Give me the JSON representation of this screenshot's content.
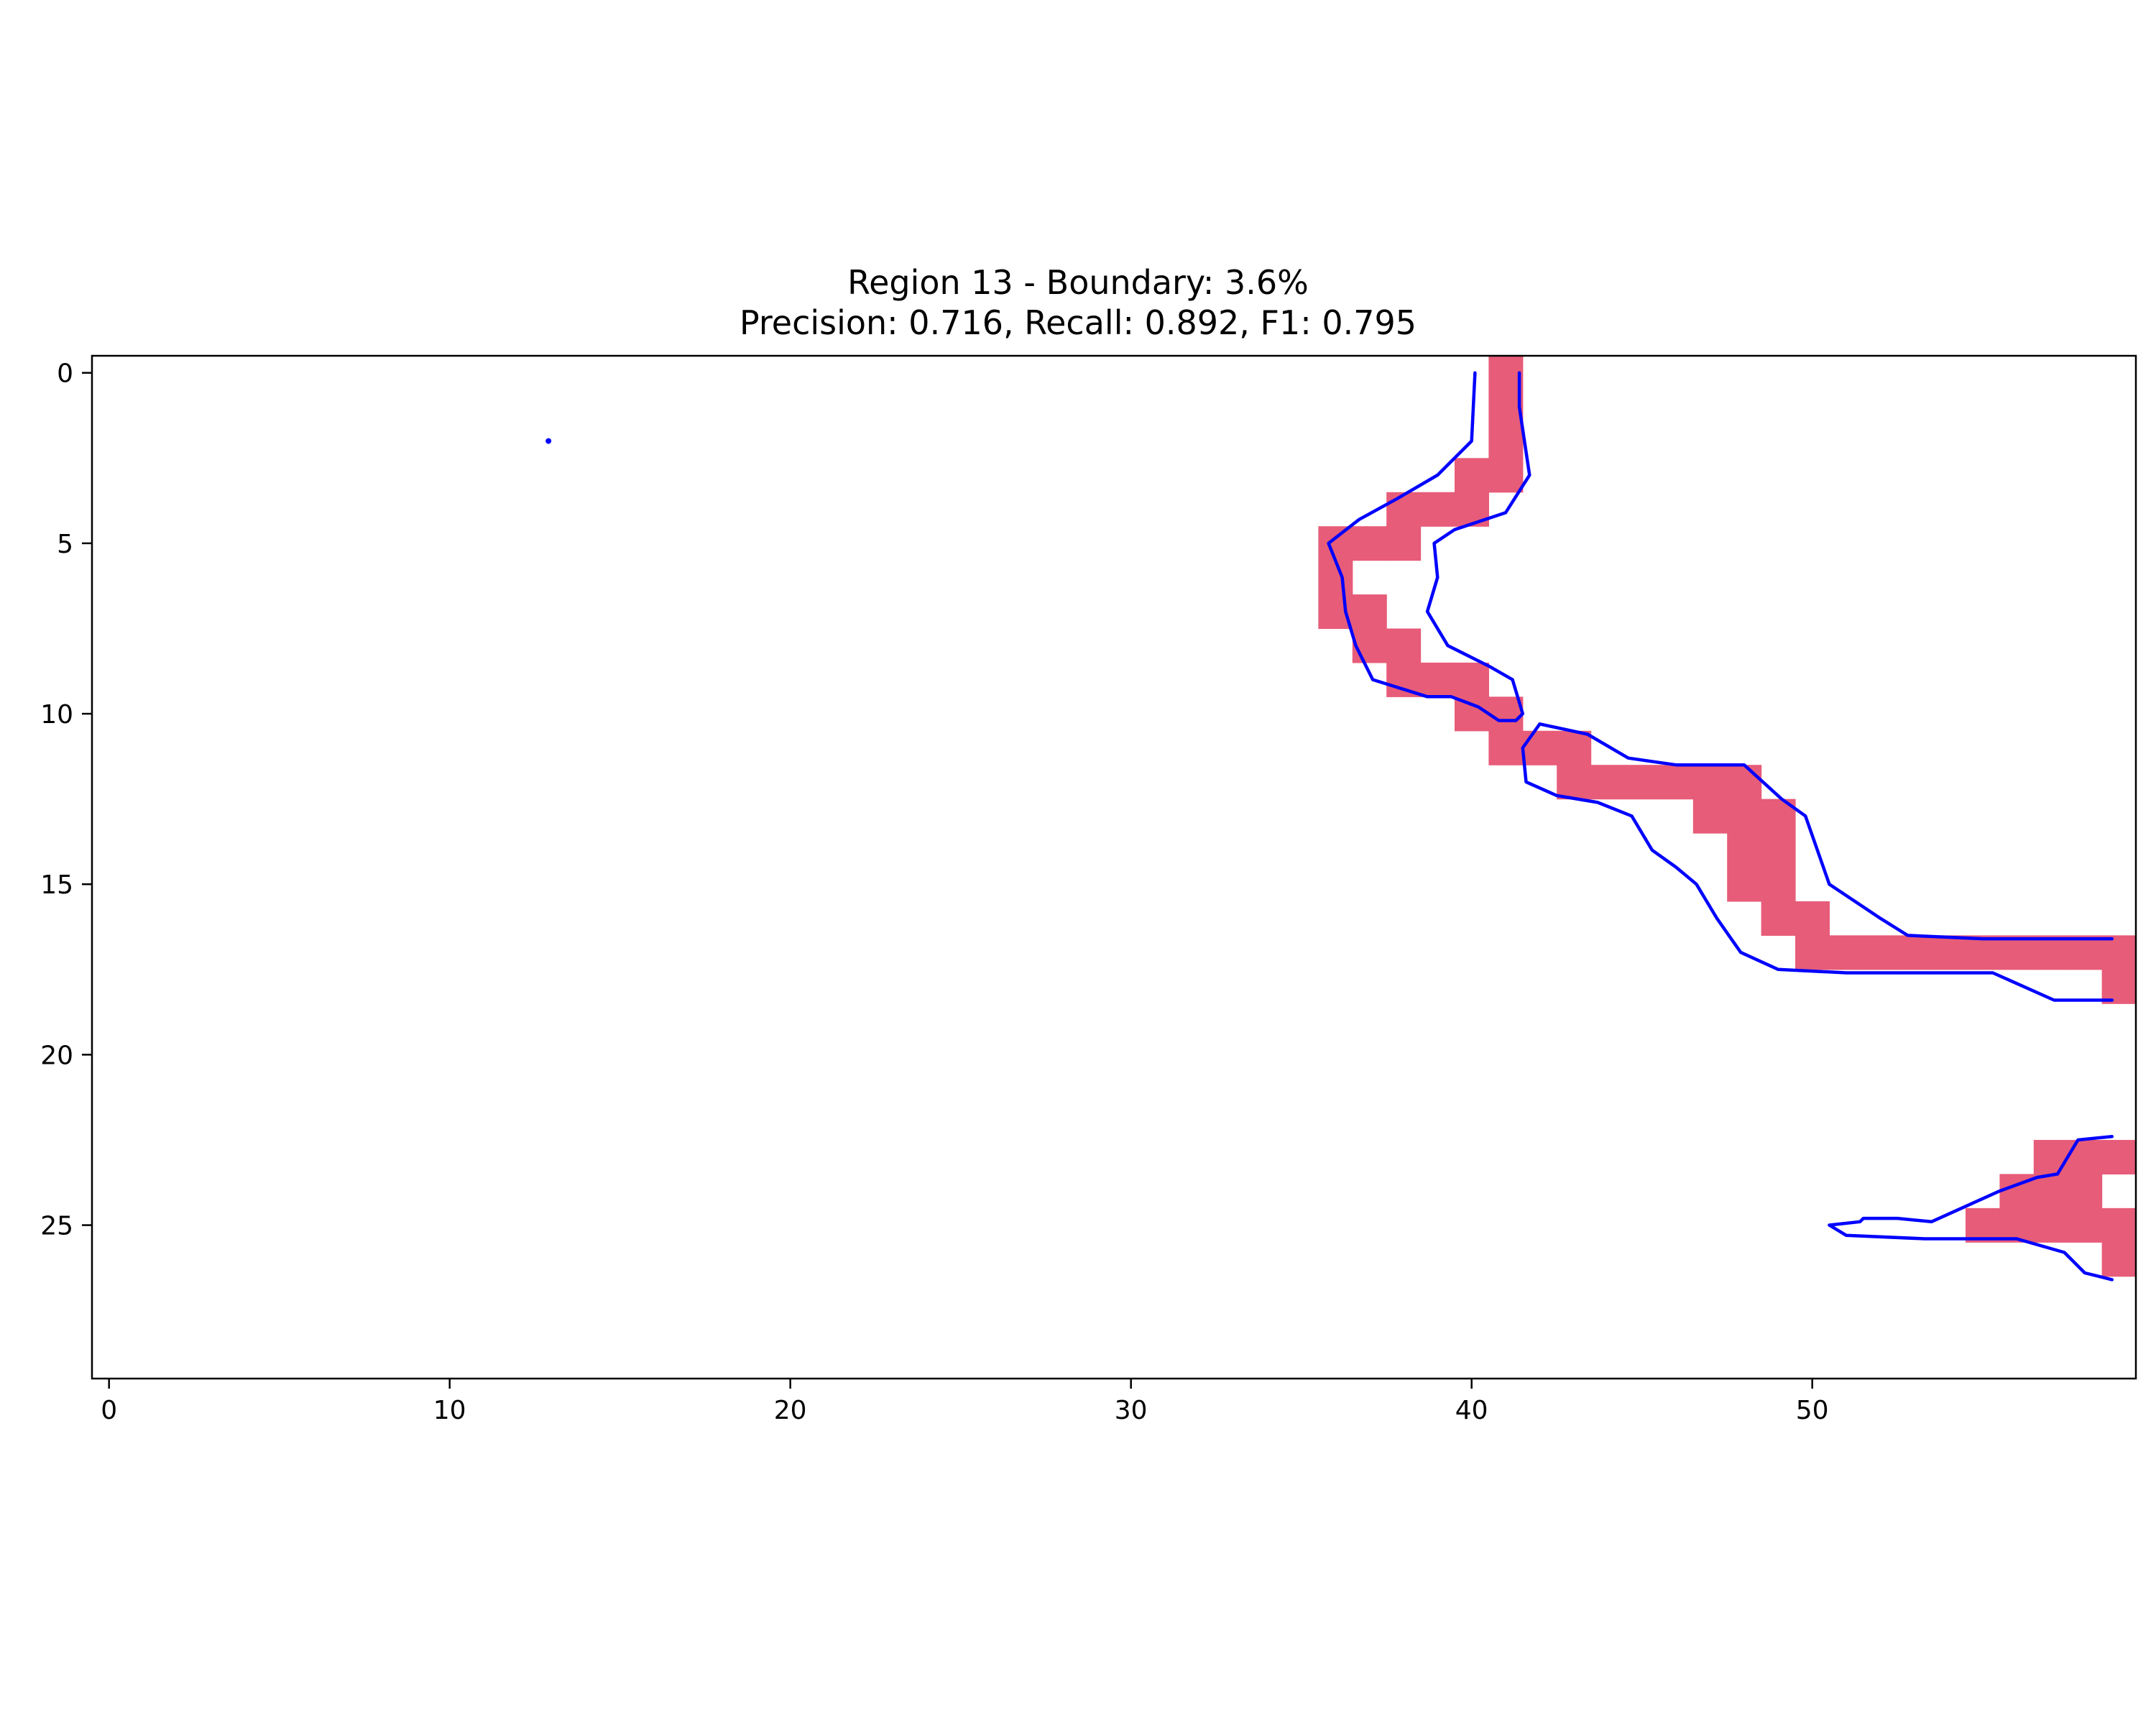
{
  "chart_data": {
    "type": "heatmap",
    "title_lines": [
      "Region 13 - Boundary: 3.6%",
      "Precision: 0.716, Recall: 0.892, F1: 0.795"
    ],
    "xlim": [
      -0.5,
      59.5
    ],
    "ylim": [
      29.5,
      -0.5
    ],
    "xticks": [
      0,
      10,
      20,
      30,
      40,
      50
    ],
    "yticks": [
      0,
      5,
      10,
      15,
      20,
      25
    ],
    "grid": false,
    "colors": {
      "mask_cell": "#e75c79",
      "contour": "#0000ff",
      "axes": "#000000",
      "background": "#ffffff"
    },
    "mask_cells": [
      [
        0,
        41
      ],
      [
        1,
        41
      ],
      [
        2,
        41
      ],
      [
        3,
        40
      ],
      [
        3,
        41
      ],
      [
        4,
        38
      ],
      [
        4,
        39
      ],
      [
        4,
        40
      ],
      [
        5,
        36
      ],
      [
        5,
        37
      ],
      [
        5,
        38
      ],
      [
        6,
        36
      ],
      [
        7,
        36
      ],
      [
        7,
        37
      ],
      [
        8,
        37
      ],
      [
        8,
        38
      ],
      [
        9,
        38
      ],
      [
        9,
        39
      ],
      [
        9,
        40
      ],
      [
        10,
        40
      ],
      [
        10,
        41
      ],
      [
        11,
        41
      ],
      [
        11,
        42
      ],
      [
        11,
        43
      ],
      [
        12,
        43
      ],
      [
        12,
        44
      ],
      [
        12,
        45
      ],
      [
        12,
        46
      ],
      [
        12,
        47
      ],
      [
        12,
        48
      ],
      [
        13,
        47
      ],
      [
        13,
        48
      ],
      [
        13,
        49
      ],
      [
        14,
        48
      ],
      [
        14,
        49
      ],
      [
        15,
        48
      ],
      [
        15,
        49
      ],
      [
        16,
        49
      ],
      [
        16,
        50
      ],
      [
        17,
        50
      ],
      [
        17,
        51
      ],
      [
        17,
        52
      ],
      [
        17,
        53
      ],
      [
        17,
        54
      ],
      [
        17,
        55
      ],
      [
        17,
        56
      ],
      [
        17,
        57
      ],
      [
        17,
        58
      ],
      [
        17,
        59
      ],
      [
        18,
        59
      ],
      [
        23,
        57
      ],
      [
        23,
        58
      ],
      [
        23,
        59
      ],
      [
        24,
        56
      ],
      [
        24,
        57
      ],
      [
        24,
        58
      ],
      [
        25,
        55
      ],
      [
        25,
        56
      ],
      [
        25,
        57
      ],
      [
        25,
        58
      ],
      [
        25,
        59
      ],
      [
        26,
        59
      ]
    ],
    "contours": [
      {
        "points": [
          [
            40.1,
            0
          ],
          [
            40,
            2
          ],
          [
            39,
            3
          ],
          [
            37.8,
            3.7
          ],
          [
            36.7,
            4.3
          ],
          [
            35.8,
            5
          ],
          [
            36.2,
            6
          ],
          [
            36.3,
            7
          ],
          [
            36.6,
            8
          ],
          [
            37.1,
            9
          ],
          [
            38.7,
            9.5
          ],
          [
            39.4,
            9.5
          ],
          [
            40.2,
            9.8
          ],
          [
            40.8,
            10.2
          ],
          [
            41.3,
            10.2
          ],
          [
            41.5,
            10
          ],
          [
            41.2,
            9
          ],
          [
            40.5,
            8.6
          ],
          [
            39.3,
            8
          ],
          [
            38.7,
            7
          ],
          [
            39,
            6
          ],
          [
            38.9,
            5
          ],
          [
            39.5,
            4.6
          ],
          [
            41,
            4.1
          ],
          [
            41.7,
            3
          ],
          [
            41.4,
            1
          ],
          [
            41.4,
            0
          ]
        ]
      },
      {
        "points": [
          [
            42,
            10.3
          ],
          [
            41.5,
            11
          ],
          [
            41.6,
            12
          ],
          [
            42.5,
            12.4
          ],
          [
            43.7,
            12.6
          ],
          [
            44.7,
            13
          ],
          [
            45.3,
            14
          ],
          [
            46,
            14.5
          ],
          [
            46.6,
            15
          ],
          [
            47.2,
            16
          ],
          [
            47.9,
            17
          ],
          [
            49,
            17.5
          ],
          [
            51,
            17.6
          ],
          [
            54,
            17.6
          ],
          [
            55.3,
            17.6
          ],
          [
            57.1,
            18.4
          ],
          [
            58.8,
            18.4
          ]
        ]
      },
      {
        "points": [
          [
            42,
            10.3
          ],
          [
            43.4,
            10.6
          ],
          [
            44.6,
            11.3
          ],
          [
            46,
            11.5
          ],
          [
            48,
            11.5
          ],
          [
            49.1,
            12.5
          ],
          [
            49.8,
            13
          ],
          [
            50.5,
            15
          ],
          [
            52,
            16
          ],
          [
            52.8,
            16.5
          ],
          [
            55,
            16.6
          ],
          [
            58.8,
            16.6
          ]
        ]
      },
      {
        "points": [
          [
            58.8,
            22.4
          ],
          [
            57.8,
            22.5
          ],
          [
            57.2,
            23.5
          ],
          [
            56.6,
            23.6
          ],
          [
            55.5,
            24
          ],
          [
            53.5,
            24.9
          ],
          [
            52.5,
            24.8
          ],
          [
            51.5,
            24.8
          ],
          [
            51.4,
            24.9
          ],
          [
            50.5,
            25
          ],
          [
            51,
            25.3
          ],
          [
            53.3,
            25.4
          ],
          [
            56,
            25.4
          ],
          [
            57.4,
            25.8
          ],
          [
            58,
            26.4
          ],
          [
            58.8,
            26.6
          ]
        ]
      }
    ],
    "points": [
      [
        12.9,
        2
      ]
    ]
  }
}
